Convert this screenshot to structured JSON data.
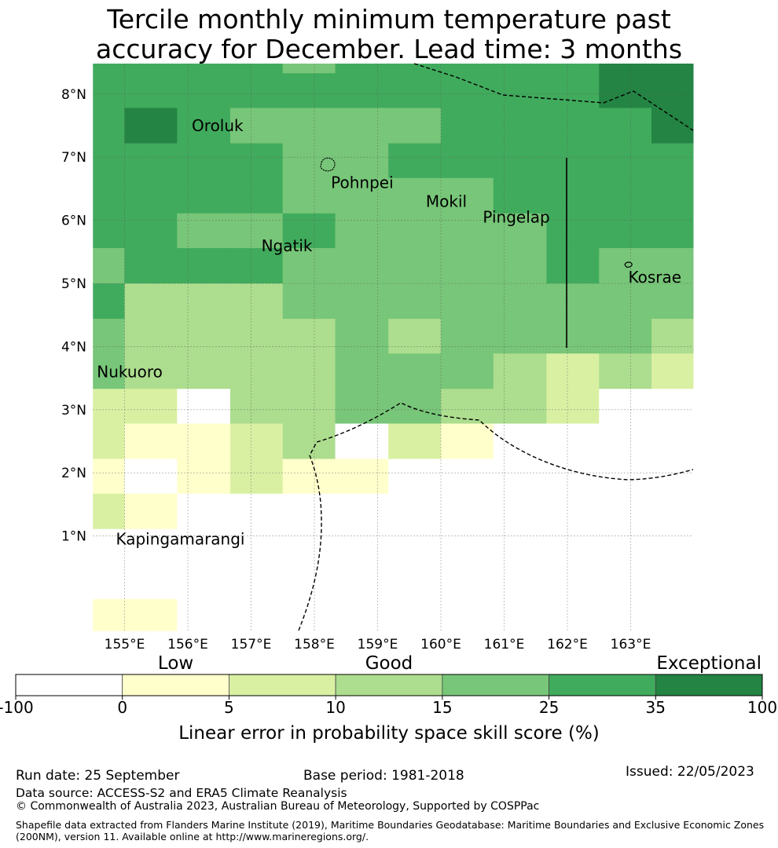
{
  "title_line1": "Tercile monthly minimum temperature past",
  "title_line2": "accuracy for December. Lead time: 3 months",
  "map": {
    "lon_range": [
      154.5,
      164.0
    ],
    "lat_range": [
      -0.5,
      8.5
    ],
    "x_ticks": [
      "155°E",
      "156°E",
      "157°E",
      "158°E",
      "159°E",
      "160°E",
      "161°E",
      "162°E",
      "163°E"
    ],
    "y_ticks": [
      "1°N",
      "2°N",
      "3°N",
      "4°N",
      "5°N",
      "6°N",
      "7°N",
      "8°N"
    ],
    "islands": [
      {
        "name": "Oroluk",
        "lon": 156.1,
        "lat": 7.5
      },
      {
        "name": "Pohnpei",
        "lon": 158.3,
        "lat": 6.6
      },
      {
        "name": "Mokil",
        "lon": 159.8,
        "lat": 6.3
      },
      {
        "name": "Pingelap",
        "lon": 160.7,
        "lat": 6.05
      },
      {
        "name": "Ngatik",
        "lon": 157.2,
        "lat": 5.6
      },
      {
        "name": "Kosrae",
        "lon": 163.0,
        "lat": 5.1
      },
      {
        "name": "Nukuoro",
        "lon": 154.6,
        "lat": 3.6
      },
      {
        "name": "Kapingamarangi",
        "lon": 154.9,
        "lat": 0.95
      }
    ],
    "grid_data": {
      "lons": [
        154.5,
        155.0,
        155.83,
        156.67,
        157.5,
        158.33,
        159.17,
        160.0,
        160.83,
        161.67,
        162.5,
        163.33,
        164.0
      ],
      "lats": [
        8.5,
        8.33,
        7.78,
        7.22,
        6.67,
        6.11,
        5.56,
        5.0,
        4.44,
        3.89,
        3.33,
        2.78,
        2.22,
        1.67,
        1.11,
        0.56,
        0.0,
        -0.5
      ],
      "rows": [
        [
          5,
          5,
          5,
          5,
          4,
          5,
          5,
          5,
          5,
          5,
          6,
          6
        ],
        [
          5,
          5,
          5,
          5,
          5,
          5,
          5,
          5,
          5,
          5,
          6,
          6
        ],
        [
          5,
          6,
          5,
          4,
          4,
          4,
          4,
          5,
          5,
          5,
          5,
          6
        ],
        [
          5,
          5,
          5,
          5,
          4,
          4,
          5,
          5,
          5,
          5,
          5,
          5
        ],
        [
          5,
          5,
          5,
          5,
          4,
          4,
          4,
          4,
          5,
          5,
          5,
          5
        ],
        [
          5,
          5,
          4,
          4,
          5,
          4,
          4,
          4,
          4,
          5,
          5,
          5
        ],
        [
          4,
          5,
          5,
          5,
          4,
          4,
          4,
          4,
          4,
          5,
          4,
          4
        ],
        [
          5,
          3,
          3,
          3,
          4,
          4,
          4,
          4,
          4,
          4,
          4,
          4
        ],
        [
          4,
          3,
          3,
          3,
          3,
          4,
          3,
          4,
          4,
          4,
          4,
          3
        ],
        [
          4,
          3,
          3,
          3,
          3,
          4,
          4,
          4,
          3,
          2,
          3,
          2
        ],
        [
          2,
          2,
          0,
          3,
          3,
          4,
          4,
          3,
          3,
          2,
          0,
          0
        ],
        [
          2,
          1,
          1,
          2,
          3,
          0,
          2,
          1,
          0,
          0,
          0,
          0
        ],
        [
          1,
          0,
          1,
          2,
          1,
          1,
          0,
          0,
          0,
          0,
          0,
          0
        ],
        [
          2,
          1,
          0,
          0,
          0,
          0,
          0,
          0,
          0,
          0,
          0,
          0
        ],
        [
          0,
          0,
          0,
          0,
          0,
          0,
          0,
          0,
          0,
          0,
          0,
          0
        ],
        [
          0,
          0,
          0,
          0,
          0,
          0,
          0,
          0,
          0,
          0,
          0,
          0
        ],
        [
          1,
          1,
          0,
          0,
          0,
          0,
          0,
          0,
          0,
          0,
          0,
          0
        ]
      ]
    }
  },
  "colorbar": {
    "category_labels": [
      "Low",
      "Good",
      "Exceptional"
    ],
    "tick_labels": [
      "-100",
      "0",
      "5",
      "10",
      "15",
      "25",
      "35",
      "100"
    ],
    "colors": [
      "#ffffff",
      "#ffffcc",
      "#d9f0a3",
      "#addd8e",
      "#78c679",
      "#41ab5d",
      "#238443"
    ],
    "axis_label": "Linear error in probability space skill score (%)"
  },
  "footer": {
    "run_date": "Run date: 25 September",
    "base_period": "Base period: 1981-2018",
    "issued": "Issued: 22/05/2023",
    "data_source": "Data source: ACCESS-S2 and ERA5 Climate Reanalysis",
    "copyright": "© Commonwealth of Australia 2023, Australian Bureau of Meteorology, Supported by COSPPac",
    "shapefile_line1": "Shapefile data extracted from Flanders Marine Institute (2019), Maritime Boundaries Geodatabase: Maritime Boundaries and Exclusive Economic Zones",
    "shapefile_line2": "(200NM), version 11. Available online at http://www.marineregions.org/."
  }
}
